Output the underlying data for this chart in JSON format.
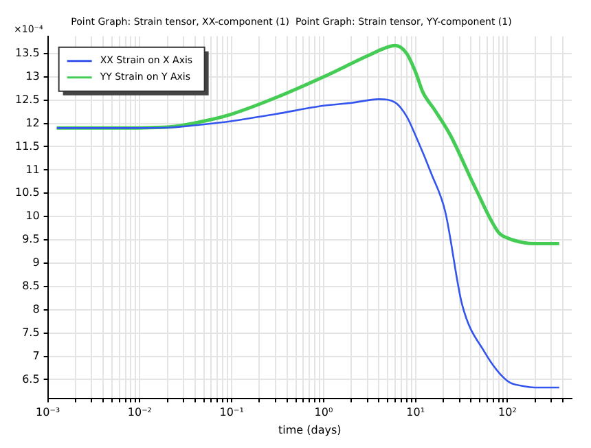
{
  "chart_data": {
    "type": "line",
    "title": "Point Graph: Strain tensor, XX-component (1)  Point Graph: Strain tensor, YY-component (1)",
    "xlabel": "time (days)",
    "annotations": [
      "×10⁻⁴"
    ],
    "log": "x",
    "grid": true,
    "legend": "top left",
    "marker": "none",
    "line_style": "solid",
    "xlim": [
      0.001,
      500
    ],
    "ylim": [
      6.1,
      13.87
    ],
    "xticks": [
      {
        "value": 0.001,
        "label": "10⁻³"
      },
      {
        "value": 0.002,
        "label": null
      },
      {
        "value": 0.003,
        "label": null
      },
      {
        "value": 0.004,
        "label": null
      },
      {
        "value": 0.005,
        "label": null
      },
      {
        "value": 0.006,
        "label": null
      },
      {
        "value": 0.007,
        "label": null
      },
      {
        "value": 0.008,
        "label": null
      },
      {
        "value": 0.009,
        "label": null
      },
      {
        "value": 0.01,
        "label": "10⁻²"
      },
      {
        "value": 0.02,
        "label": null
      },
      {
        "value": 0.03,
        "label": null
      },
      {
        "value": 0.04,
        "label": null
      },
      {
        "value": 0.05,
        "label": null
      },
      {
        "value": 0.06,
        "label": null
      },
      {
        "value": 0.07,
        "label": null
      },
      {
        "value": 0.08,
        "label": null
      },
      {
        "value": 0.09,
        "label": null
      },
      {
        "value": 0.1,
        "label": "10⁻¹"
      },
      {
        "value": 0.2,
        "label": null
      },
      {
        "value": 0.3,
        "label": null
      },
      {
        "value": 0.4,
        "label": null
      },
      {
        "value": 0.5,
        "label": null
      },
      {
        "value": 0.6,
        "label": null
      },
      {
        "value": 0.7,
        "label": null
      },
      {
        "value": 0.8,
        "label": null
      },
      {
        "value": 0.9,
        "label": null
      },
      {
        "value": 1,
        "label": "10⁰"
      },
      {
        "value": 2,
        "label": null
      },
      {
        "value": 3,
        "label": null
      },
      {
        "value": 4,
        "label": null
      },
      {
        "value": 5,
        "label": null
      },
      {
        "value": 6,
        "label": null
      },
      {
        "value": 7,
        "label": null
      },
      {
        "value": 8,
        "label": null
      },
      {
        "value": 9,
        "label": null
      },
      {
        "value": 10,
        "label": "10¹"
      },
      {
        "value": 20,
        "label": null
      },
      {
        "value": 30,
        "label": null
      },
      {
        "value": 40,
        "label": null
      },
      {
        "value": 50,
        "label": null
      },
      {
        "value": 60,
        "label": null
      },
      {
        "value": 70,
        "label": null
      },
      {
        "value": 80,
        "label": null
      },
      {
        "value": 90,
        "label": null
      },
      {
        "value": 100,
        "label": "10²"
      },
      {
        "value": 200,
        "label": null
      },
      {
        "value": 300,
        "label": null
      },
      {
        "value": 400,
        "label": null
      }
    ],
    "yticks": [
      6.5,
      7,
      7.5,
      8,
      8.5,
      9,
      9.5,
      10,
      10.5,
      11,
      11.5,
      12,
      12.5,
      13,
      13.5
    ],
    "series": [
      {
        "name": "XX Strain on X Axis",
        "color": "#3355ee",
        "x": [
          0.00125,
          0.005,
          0.02,
          0.05,
          0.1,
          0.3,
          1,
          2,
          4,
          6,
          8,
          10,
          15,
          21,
          32,
          56,
          100,
          150,
          200,
          300,
          365
        ],
        "values": [
          11.9,
          11.9,
          11.91,
          11.98,
          12.05,
          12.2,
          12.38,
          12.44,
          12.52,
          12.45,
          12.15,
          11.74,
          10.9,
          10.11,
          8.12,
          7.1,
          6.47,
          6.36,
          6.33,
          6.33,
          6.33
        ]
      },
      {
        "name": "YY Strain on Y Axis",
        "color": "#44cc55",
        "x": [
          0.00125,
          0.005,
          0.02,
          0.05,
          0.1,
          0.3,
          1,
          3,
          5,
          6,
          8,
          10,
          12,
          16,
          24,
          45,
          80,
          100,
          150,
          200,
          300,
          365
        ],
        "values": [
          11.9,
          11.9,
          11.92,
          12.05,
          12.2,
          12.55,
          13.0,
          13.45,
          13.64,
          13.67,
          13.5,
          13.1,
          12.67,
          12.3,
          11.74,
          10.6,
          9.66,
          9.54,
          9.44,
          9.42,
          9.42,
          9.42
        ]
      }
    ]
  }
}
